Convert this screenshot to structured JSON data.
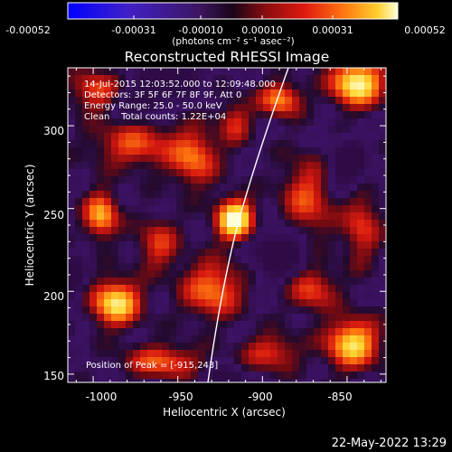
{
  "colorbar": {
    "tick_labels": [
      "-0.00052",
      "-0.00031",
      "-0.00010",
      "0.00010",
      "0.00031",
      "0.00052"
    ],
    "units_line": "(photons cm⁻² s⁻¹ asec⁻²)"
  },
  "image": {
    "title": "Reconstructed RHESSI Image",
    "info_time": "14-Jul-2015 12:03:52.000 to 12:09:48.000",
    "info_detectors": "Detectors: 3F 5F 6F 7F 8F 9F, Att 0",
    "info_energy": "Energy Range: 25.0 - 50.0 keV",
    "info_clean": "Clean    Total counts: 1.22E+04",
    "peak_label": "Position of Peak = [-915,243]"
  },
  "axes": {
    "xlabel": "Heliocentric X (arcsec)",
    "ylabel": "Heliocentric Y (arcsec)",
    "x_ticks": [
      "-1000",
      "-950",
      "-900",
      "-850"
    ],
    "y_ticks": [
      "150",
      "200",
      "250",
      "300"
    ],
    "x_tick_values": [
      -1000,
      -950,
      -900,
      -850
    ],
    "y_tick_values": [
      150,
      200,
      250,
      300
    ],
    "x_range": [
      -1015,
      -827
    ],
    "y_range": [
      145,
      335
    ]
  },
  "footer": {
    "date": "22-May-2022 13:29"
  },
  "colors": {
    "background": "#000000",
    "text": "#ffffff"
  }
}
